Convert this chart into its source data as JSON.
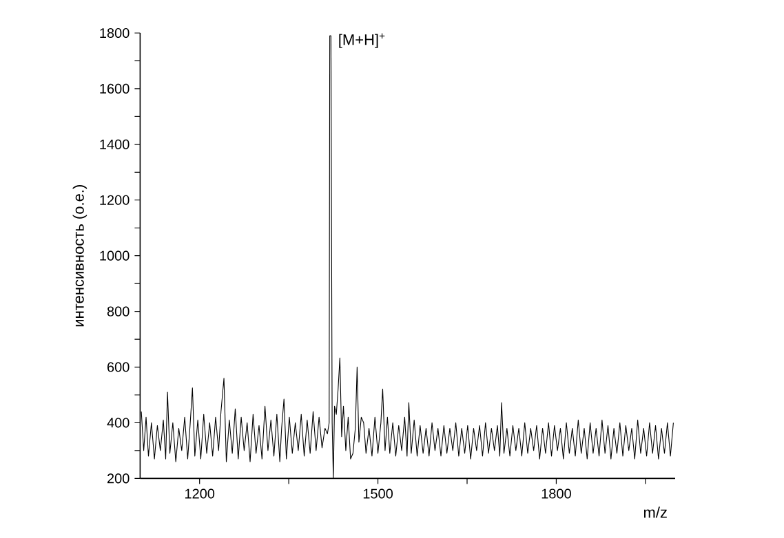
{
  "chart_data": {
    "type": "line",
    "xlabel": "m/z",
    "ylabel": "интенсивность (о.е.)",
    "annotations": [
      {
        "text": "[M+H]$^{+}$",
        "x": 1421,
        "y": 1790
      }
    ],
    "xlim": [
      1100,
      2000
    ],
    "ylim": [
      200,
      1800
    ],
    "xticks": [
      1200,
      {
        "value": 1350,
        "label": null
      },
      1500,
      {
        "value": 1650,
        "label": null
      },
      1800,
      {
        "value": 1950,
        "label": null
      }
    ],
    "yticks": [
      200,
      {
        "value": 300,
        "label": null
      },
      400,
      {
        "value": 500,
        "label": null
      },
      600,
      {
        "value": 700,
        "label": null
      },
      800,
      {
        "value": 900,
        "label": null
      },
      1000,
      {
        "value": 1100,
        "label": null
      },
      1200,
      {
        "value": 1300,
        "label": null
      },
      1400,
      {
        "value": 1500,
        "label": null
      },
      1600,
      {
        "value": 1700,
        "label": null
      },
      1800
    ],
    "marker": "none",
    "line_style": "solid",
    "series": [
      {
        "color": "#000000",
        "x": [
          1102,
          1106,
          1110,
          1114,
          1119,
          1124,
          1129,
          1134,
          1139,
          1143,
          1146,
          1150,
          1155,
          1160,
          1165,
          1170,
          1175,
          1180,
          1184,
          1188,
          1192,
          1197,
          1202,
          1207,
          1212,
          1217,
          1222,
          1227,
          1232,
          1236,
          1241,
          1245,
          1250,
          1255,
          1260,
          1265,
          1270,
          1275,
          1280,
          1285,
          1290,
          1295,
          1300,
          1305,
          1310,
          1315,
          1320,
          1325,
          1330,
          1335,
          1338,
          1342,
          1346,
          1351,
          1356,
          1361,
          1366,
          1371,
          1376,
          1381,
          1386,
          1391,
          1396,
          1401,
          1406,
          1411,
          1415,
          1418,
          1419,
          1421,
          1423,
          1425,
          1427,
          1430,
          1433,
          1436,
          1439,
          1442,
          1446,
          1450,
          1454,
          1458,
          1462,
          1465,
          1468,
          1472,
          1476,
          1480,
          1485,
          1490,
          1495,
          1500,
          1505,
          1508,
          1512,
          1516,
          1520,
          1525,
          1530,
          1535,
          1540,
          1545,
          1549,
          1552,
          1556,
          1561,
          1566,
          1571,
          1576,
          1581,
          1586,
          1591,
          1596,
          1601,
          1606,
          1611,
          1616,
          1621,
          1626,
          1631,
          1636,
          1641,
          1646,
          1651,
          1656,
          1661,
          1666,
          1671,
          1676,
          1681,
          1686,
          1691,
          1696,
          1701,
          1705,
          1708,
          1712,
          1717,
          1722,
          1727,
          1732,
          1737,
          1742,
          1747,
          1752,
          1757,
          1762,
          1767,
          1772,
          1777,
          1782,
          1787,
          1792,
          1797,
          1802,
          1807,
          1812,
          1817,
          1822,
          1827,
          1832,
          1837,
          1842,
          1847,
          1852,
          1857,
          1862,
          1867,
          1872,
          1877,
          1882,
          1887,
          1892,
          1897,
          1902,
          1907,
          1912,
          1917,
          1922,
          1927,
          1932,
          1937,
          1942,
          1947,
          1952,
          1957,
          1962,
          1967,
          1972,
          1977,
          1982,
          1987,
          1992,
          1997
        ],
        "values": [
          440,
          300,
          420,
          280,
          400,
          270,
          390,
          300,
          410,
          270,
          510,
          290,
          400,
          260,
          380,
          300,
          420,
          270,
          390,
          525,
          280,
          410,
          270,
          430,
          290,
          400,
          280,
          420,
          300,
          440,
          560,
          260,
          410,
          290,
          450,
          270,
          420,
          300,
          400,
          260,
          430,
          290,
          390,
          270,
          460,
          300,
          410,
          280,
          430,
          260,
          380,
          485,
          270,
          420,
          290,
          400,
          300,
          430,
          280,
          410,
          290,
          440,
          300,
          420,
          310,
          380,
          360,
          400,
          1790,
          1790,
          400,
          200,
          460,
          430,
          520,
          633,
          350,
          460,
          300,
          420,
          270,
          290,
          380,
          600,
          330,
          420,
          400,
          290,
          380,
          280,
          420,
          290,
          400,
          521,
          300,
          420,
          290,
          400,
          280,
          390,
          300,
          420,
          280,
          472,
          290,
          410,
          280,
          390,
          290,
          380,
          280,
          400,
          300,
          380,
          280,
          390,
          290,
          380,
          300,
          400,
          280,
          380,
          290,
          390,
          270,
          380,
          300,
          390,
          280,
          400,
          290,
          380,
          300,
          390,
          280,
          472,
          290,
          380,
          280,
          390,
          300,
          380,
          280,
          400,
          290,
          380,
          300,
          390,
          270,
          380,
          290,
          400,
          280,
          390,
          300,
          380,
          270,
          400,
          290,
          380,
          280,
          410,
          290,
          380,
          270,
          400,
          290,
          380,
          280,
          410,
          290,
          390,
          270,
          380,
          290,
          400,
          280,
          390,
          300,
          380,
          270,
          410,
          290,
          380,
          280,
          400,
          290,
          390,
          270,
          380,
          290,
          400,
          280,
          400
        ]
      }
    ]
  }
}
